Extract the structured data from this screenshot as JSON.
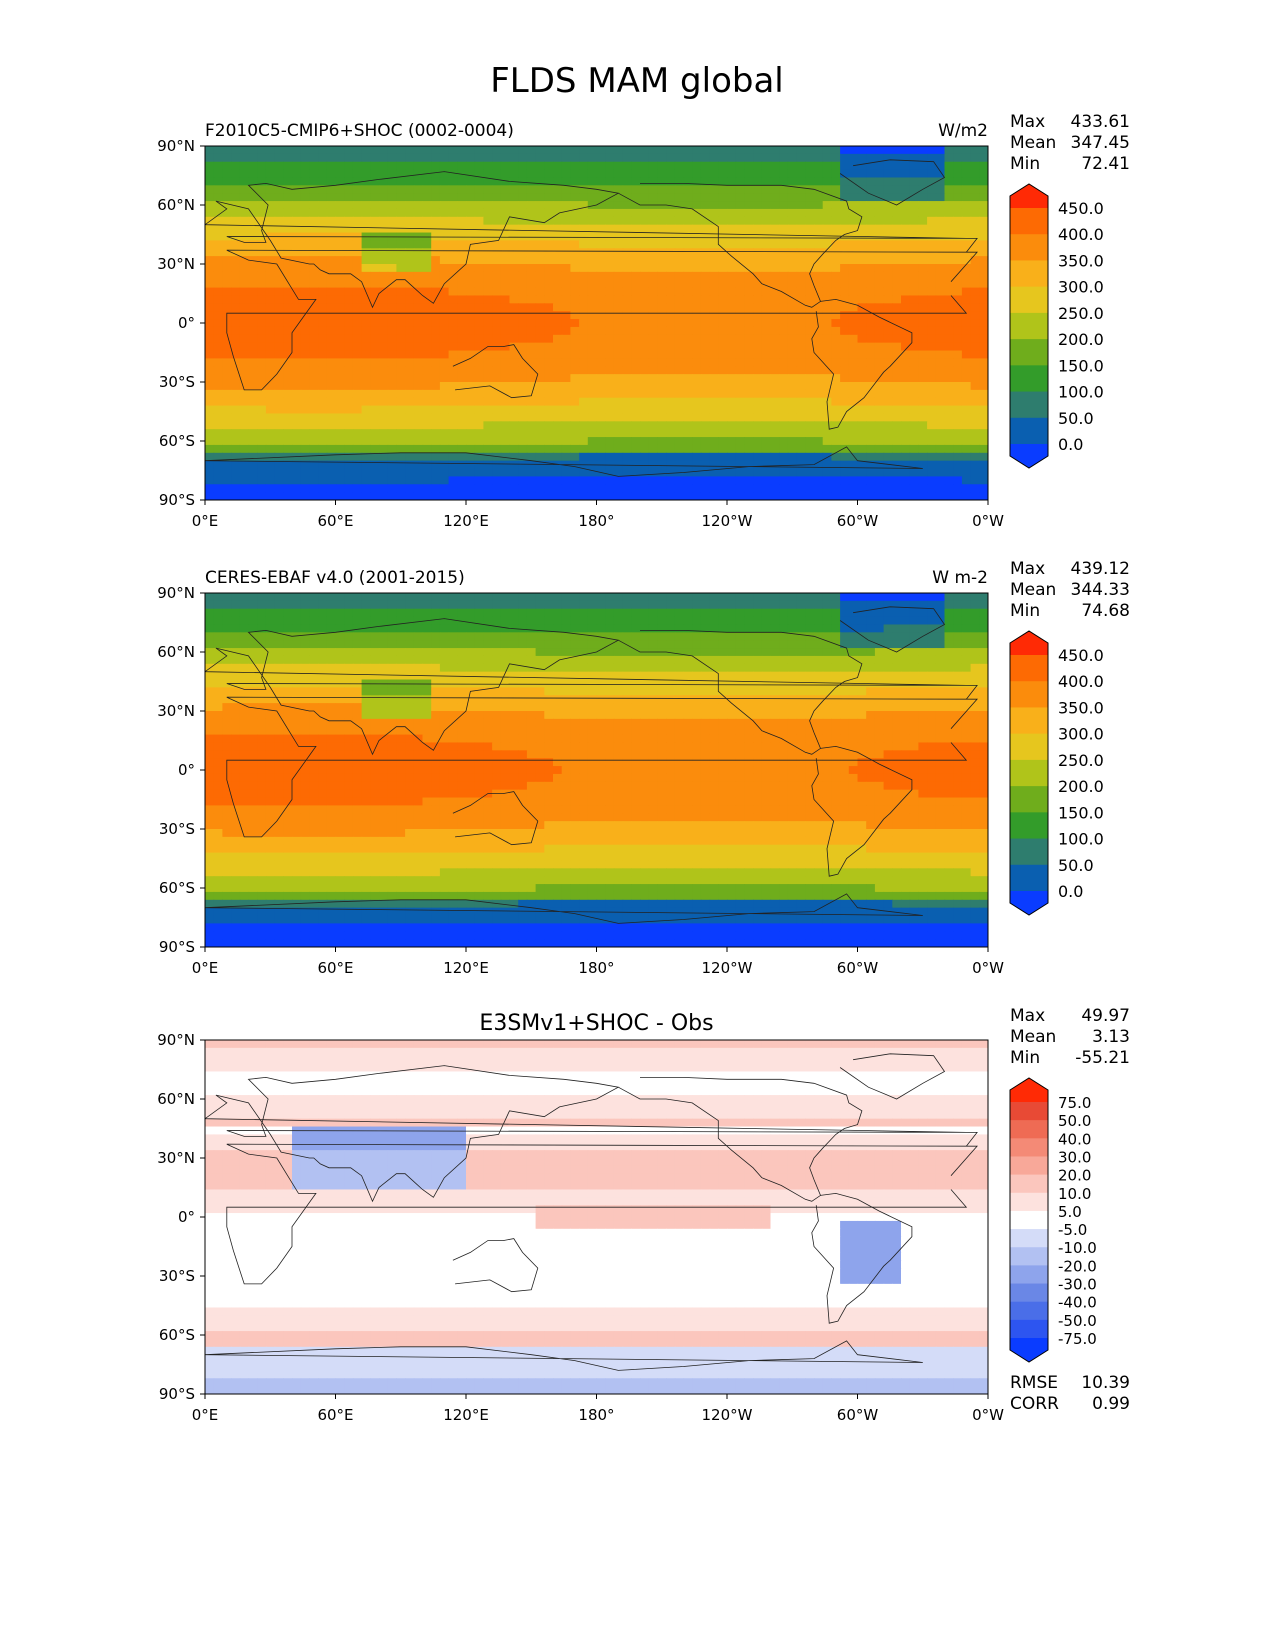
{
  "title": "FLDS MAM global",
  "x_ticks": [
    "0°E",
    "60°E",
    "120°E",
    "180°",
    "120°W",
    "60°W",
    "0°W"
  ],
  "y_ticks": [
    "90°N",
    "60°N",
    "30°N",
    "0°",
    "30°S",
    "60°S",
    "90°S"
  ],
  "chart_data": [
    {
      "type": "heatmap",
      "title_left": "F2010C5-CMIP6+SHOC (0002-0004)",
      "title_center": "",
      "units": "W/m2",
      "stats": {
        "Max": "433.61",
        "Mean": "347.45",
        "Min": "72.41"
      },
      "xlim": [
        0,
        360
      ],
      "ylim": [
        -90,
        90
      ],
      "colorbar_levels": [
        "0.0",
        "50.0",
        "100.0",
        "150.0",
        "200.0",
        "250.0",
        "300.0",
        "350.0",
        "400.0",
        "450.0"
      ],
      "colors": [
        "#0a3cff",
        "#0a5fb0",
        "#2e7d6e",
        "#339c2a",
        "#6fad1c",
        "#b0c41a",
        "#e6c61e",
        "#f9b01a",
        "#fb8c0c",
        "#fd6a03",
        "#ff2a05"
      ]
    },
    {
      "type": "heatmap",
      "title_left": "CERES-EBAF v4.0 (2001-2015)",
      "title_center": "",
      "units": "W m-2",
      "stats": {
        "Max": "439.12",
        "Mean": "344.33",
        "Min": "74.68"
      },
      "xlim": [
        0,
        360
      ],
      "ylim": [
        -90,
        90
      ],
      "colorbar_levels": [
        "0.0",
        "50.0",
        "100.0",
        "150.0",
        "200.0",
        "250.0",
        "300.0",
        "350.0",
        "400.0",
        "450.0"
      ],
      "colors": [
        "#0a3cff",
        "#0a5fb0",
        "#2e7d6e",
        "#339c2a",
        "#6fad1c",
        "#b0c41a",
        "#e6c61e",
        "#f9b01a",
        "#fb8c0c",
        "#fd6a03",
        "#ff2a05"
      ]
    },
    {
      "type": "heatmap",
      "title_left": "",
      "title_center": "E3SMv1+SHOC - Obs",
      "units": "",
      "stats": {
        "Max": "49.97",
        "Mean": "3.13",
        "Min": "-55.21"
      },
      "extra_stats": {
        "RMSE": "10.39",
        "CORR": "0.99"
      },
      "xlim": [
        0,
        360
      ],
      "ylim": [
        -90,
        90
      ],
      "colorbar_levels": [
        "-75.0",
        "-50.0",
        "-40.0",
        "-30.0",
        "-20.0",
        "-10.0",
        "-5.0",
        "5.0",
        "10.0",
        "20.0",
        "30.0",
        "40.0",
        "50.0",
        "75.0"
      ],
      "colors": [
        "#0a3cff",
        "#2d55f0",
        "#4a6ee8",
        "#6a87e6",
        "#8ea4ec",
        "#b2c1f2",
        "#d4dcf8",
        "#ffffff",
        "#fde2de",
        "#fbc6bd",
        "#f8a899",
        "#f48a76",
        "#ef6b54",
        "#e84a35",
        "#ff2a05"
      ]
    }
  ]
}
